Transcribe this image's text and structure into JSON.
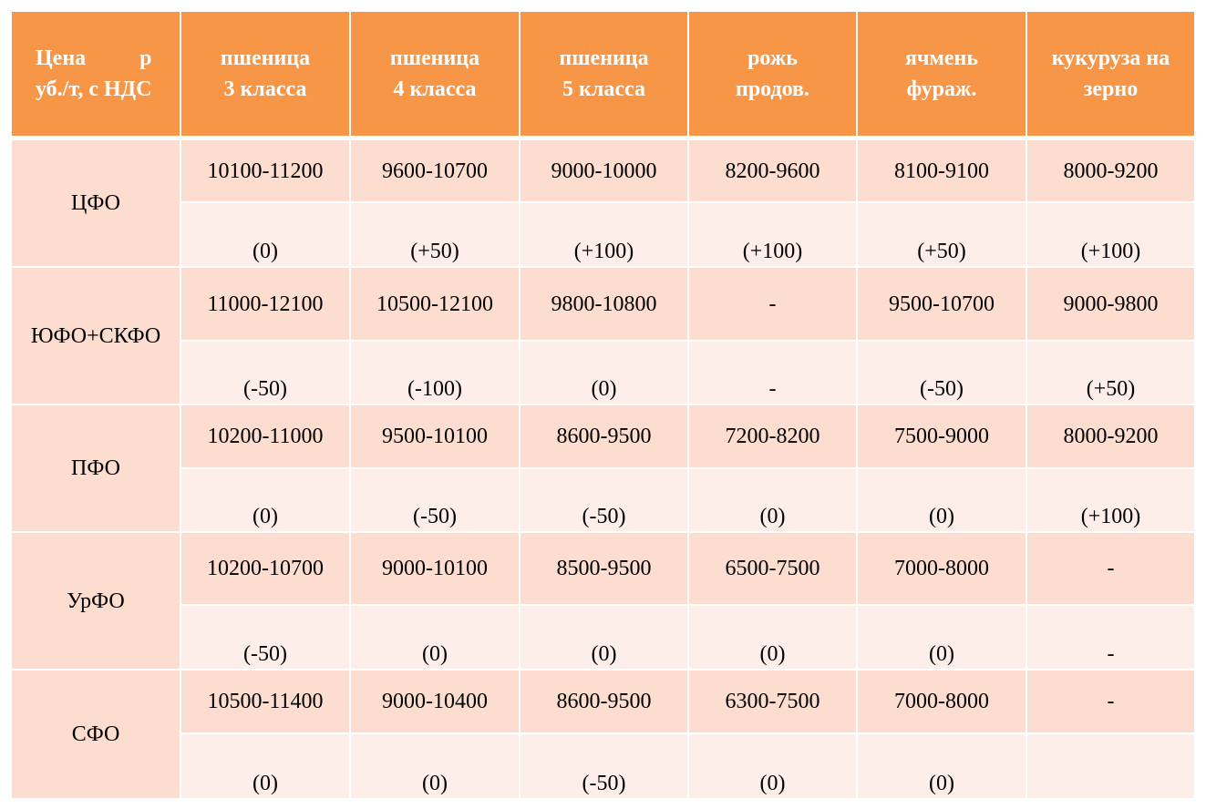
{
  "table": {
    "header": [
      "Цена р\nуб./т, с НДС",
      "пшеница\n3 класса",
      "пшеница\n4 класса",
      "пшеница\n5 класса",
      "рожь\nпродов.",
      "ячмень\nфураж.",
      "кукуруза на\nзерно"
    ],
    "rows": [
      {
        "region": "ЦФО",
        "prices": [
          "10100-11200",
          "9600-10700",
          "9000-10000",
          "8200-9600",
          "8100-9100",
          "8000-9200"
        ],
        "changes": [
          "(0)",
          "(+50)",
          "(+100)",
          "(+100)",
          "(+50)",
          "(+100)"
        ]
      },
      {
        "region": "ЮФО+СКФО",
        "prices": [
          "11000-12100",
          "10500-12100",
          "9800-10800",
          "-",
          "9500-10700",
          "9000-9800"
        ],
        "changes": [
          "(-50)",
          "(-100)",
          "(0)",
          "-",
          "(-50)",
          "(+50)"
        ]
      },
      {
        "region": "ПФО",
        "prices": [
          "10200-11000",
          "9500-10100",
          "8600-9500",
          "7200-8200",
          "7500-9000",
          "8000-9200"
        ],
        "changes": [
          "(0)",
          "(-50)",
          "(-50)",
          "(0)",
          "(0)",
          "(+100)"
        ]
      },
      {
        "region": "УрФО",
        "prices": [
          "10200-10700",
          "9000-10100",
          "8500-9500",
          "6500-7500",
          "7000-8000",
          "-"
        ],
        "changes": [
          "(-50)",
          "(0)",
          "(0)",
          "(0)",
          "(0)",
          "-"
        ]
      },
      {
        "region": "СФО",
        "prices": [
          "10500-11400",
          "9000-10400",
          "8600-9500",
          "6300-7500",
          "7000-8000",
          "-"
        ],
        "changes": [
          "(0)",
          "(0)",
          "(-50)",
          "(0)",
          "(0)",
          ""
        ]
      }
    ]
  }
}
